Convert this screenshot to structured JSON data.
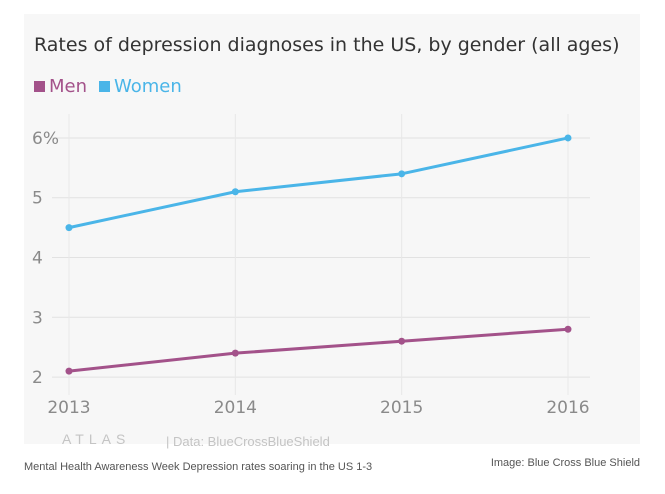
{
  "chart_data": {
    "type": "line",
    "title": "Rates of depression diagnoses in the US, by gender (all ages)",
    "x": [
      "2013",
      "2014",
      "2015",
      "2016"
    ],
    "series": [
      {
        "name": "Men",
        "color": "#a3528a",
        "values": [
          2.1,
          2.4,
          2.6,
          2.8
        ]
      },
      {
        "name": "Women",
        "color": "#4ab5e8",
        "values": [
          4.5,
          5.1,
          5.4,
          6.0
        ]
      }
    ],
    "yticks": [
      "6%",
      "5",
      "4",
      "3",
      "2"
    ],
    "ylim": [
      1.7,
      6.2
    ],
    "grid": true,
    "legend": "top-left"
  },
  "branding": {
    "logo": "ATLAS",
    "source": "| Data: BlueCrossBlueShield"
  },
  "caption": "Mental Health Awareness Week Depression rates soaring in the US 1-3",
  "credit": "Image: Blue Cross Blue Shield"
}
